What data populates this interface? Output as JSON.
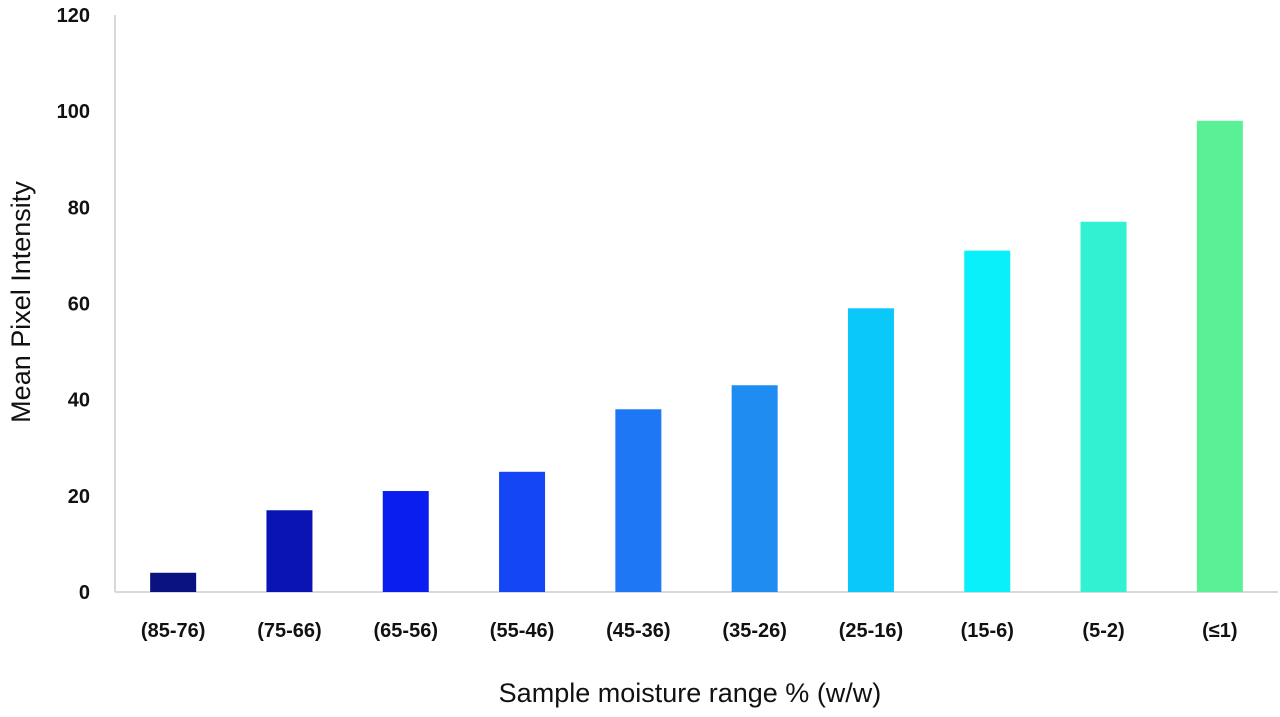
{
  "chart_data": {
    "type": "bar",
    "title": "",
    "xlabel": "Sample moisture range % (w/w)",
    "ylabel": "Mean Pixel Intensity",
    "ylim": [
      0,
      120
    ],
    "yticks": [
      0,
      20,
      40,
      60,
      80,
      100,
      120
    ],
    "grid": false,
    "legend": "none",
    "categories": [
      "(85-76)",
      "(75-66)",
      "(65-56)",
      "(55-46)",
      "(45-36)",
      "(35-26)",
      "(25-16)",
      "(15-6)",
      "(5-2)",
      "(≤1)"
    ],
    "values": [
      4,
      17,
      21,
      25,
      38,
      43,
      59,
      71,
      77,
      98
    ],
    "colors": [
      "#0a1180",
      "#0a14b4",
      "#0a1ef0",
      "#1446f5",
      "#1e78f5",
      "#1e8cf0",
      "#0ac8fa",
      "#0af0fa",
      "#32f0d2",
      "#5af096"
    ],
    "axis_color": "#d9d9d9"
  }
}
